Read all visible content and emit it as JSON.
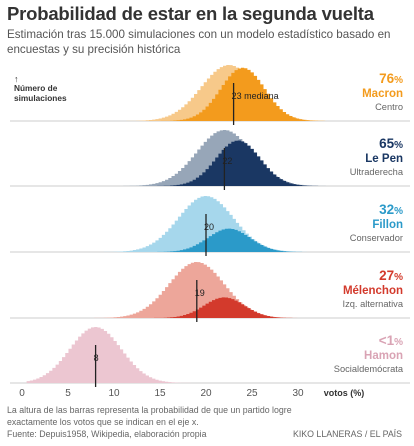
{
  "title": "Probabilidad de estar en la segunda vuelta",
  "subtitle": "Estimación tras 15.000 simulaciones con un modelo estadístico basado en encuestas y su precisión histórica",
  "y_axis_note": [
    "↑",
    "Número de",
    "simulaciones"
  ],
  "footer": {
    "note": "La altura de las barras representa la probabilidad de que un partido logre exactamente los votos que se indican en el eje x.",
    "source": "Fuente: Depuis1958, Wikipedia, elaboración propia",
    "credit": "KIKO LLANERAS / EL PAÍS"
  },
  "chart_data": {
    "type": "area",
    "x_axis": {
      "label": "votos (%)",
      "range": [
        -2,
        33
      ],
      "ticks": [
        0,
        5,
        10,
        15,
        20,
        25,
        30
      ]
    },
    "panels": [
      {
        "candidate": "Macron",
        "party": "Centro",
        "probability": "76",
        "prob_prefix": "",
        "median": 23,
        "median_label": "23 mediana",
        "color_dark": "#f39b1d",
        "color_light": "#f7c98a",
        "dist_all": {
          "mean": 22.5,
          "sd": 3.0
        },
        "dist_qualified": {
          "mean": 24.0,
          "sd": 2.4,
          "share": 0.76
        }
      },
      {
        "candidate": "Le Pen",
        "party": "Ultraderecha",
        "probability": "65",
        "prob_prefix": "",
        "median": 22,
        "median_label": "22",
        "color_dark": "#1a3763",
        "color_light": "#97a6b8",
        "dist_all": {
          "mean": 22.0,
          "sd": 3.0
        },
        "dist_qualified": {
          "mean": 23.5,
          "sd": 2.4,
          "share": 0.65
        }
      },
      {
        "candidate": "Fillon",
        "party": "Conservador",
        "probability": "32",
        "prob_prefix": "",
        "median": 20,
        "median_label": "20",
        "color_dark": "#2b9ac9",
        "color_light": "#a6d7ec",
        "dist_all": {
          "mean": 20.0,
          "sd": 3.0
        },
        "dist_qualified": {
          "mean": 22.5,
          "sd": 2.3,
          "share": 0.32
        }
      },
      {
        "candidate": "Mélenchon",
        "party": "Izq. alternativa",
        "probability": "27",
        "prob_prefix": "",
        "median": 19,
        "median_label": "19",
        "color_dark": "#d33a2c",
        "color_light": "#eda69a",
        "dist_all": {
          "mean": 19.0,
          "sd": 3.0
        },
        "dist_qualified": {
          "mean": 22.0,
          "sd": 2.2,
          "share": 0.27
        }
      },
      {
        "candidate": "Hamon",
        "party": "Socialdemócrata",
        "probability": "1",
        "prob_prefix": "<",
        "median": 8,
        "median_label": "8",
        "color_dark": "#d9a3b4",
        "color_light": "#ecc6d1",
        "dist_all": {
          "mean": 8.0,
          "sd": 2.8
        },
        "dist_qualified": {
          "mean": 8.0,
          "sd": 2.8,
          "share": 0.0
        }
      }
    ]
  }
}
